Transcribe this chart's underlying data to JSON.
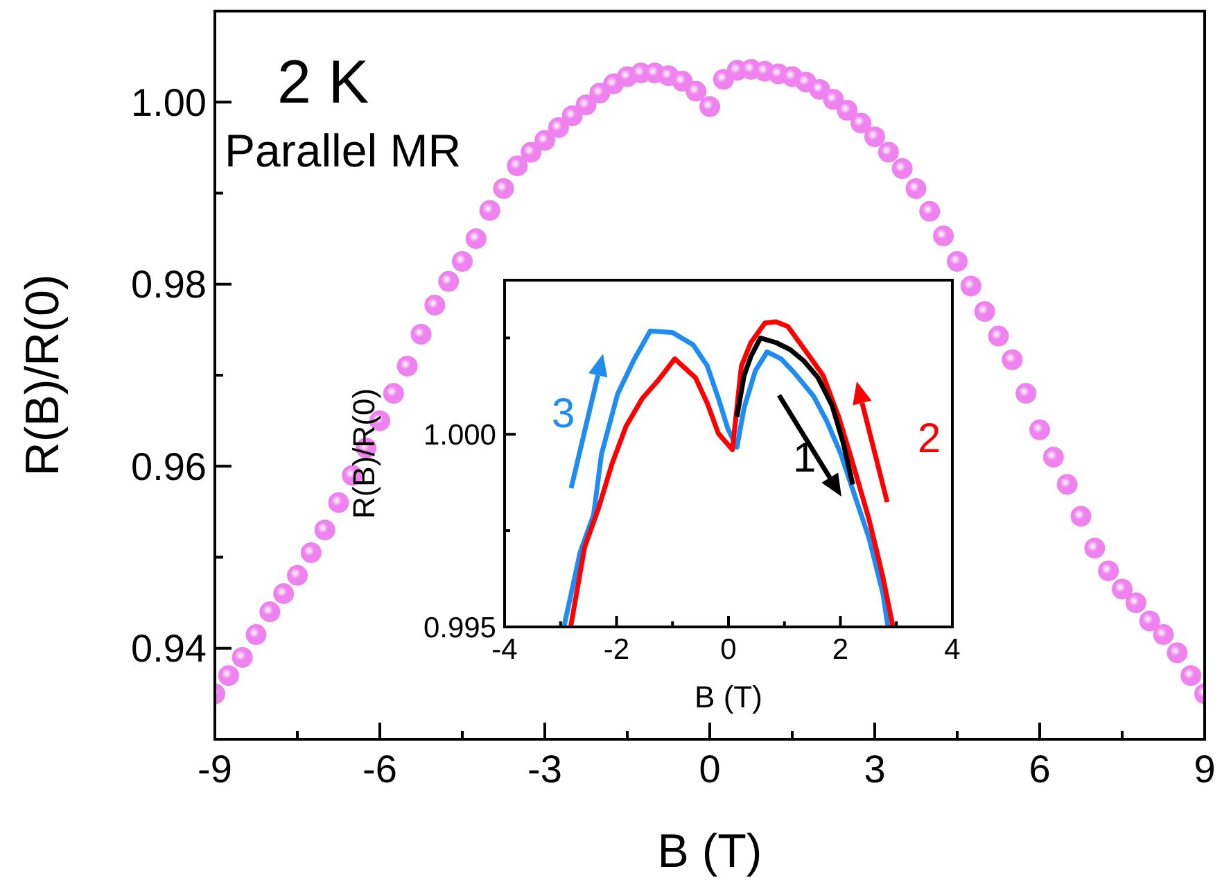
{
  "chart_data": [
    {
      "type": "scatter",
      "xlabel": "B (T)",
      "ylabel": "R(B)/R(0)",
      "annotations": [
        "2 K",
        "Parallel MR"
      ],
      "marker": "circle",
      "color": "#ee82ee",
      "x": [
        -9,
        -8.75,
        -8.5,
        -8.25,
        -8,
        -7.75,
        -7.5,
        -7.25,
        -7,
        -6.75,
        -6.5,
        -6.25,
        -6,
        -5.75,
        -5.5,
        -5.25,
        -5,
        -4.75,
        -4.5,
        -4.25,
        -4,
        -3.75,
        -3.5,
        -3.25,
        -3,
        -2.75,
        -2.5,
        -2.25,
        -2,
        -1.75,
        -1.5,
        -1.25,
        -1,
        -0.75,
        -0.5,
        -0.25,
        0,
        0.25,
        0.5,
        0.75,
        1,
        1.25,
        1.5,
        1.75,
        2,
        2.25,
        2.5,
        2.75,
        3,
        3.25,
        3.5,
        3.75,
        4,
        4.25,
        4.5,
        4.75,
        5,
        5.25,
        5.5,
        5.75,
        6,
        6.25,
        6.5,
        6.75,
        7,
        7.25,
        7.5,
        7.75,
        8,
        8.25,
        8.5,
        8.75,
        9
      ],
      "values": [
        0.935,
        0.937,
        0.939,
        0.9415,
        0.944,
        0.946,
        0.948,
        0.9505,
        0.953,
        0.956,
        0.959,
        0.962,
        0.965,
        0.968,
        0.971,
        0.9745,
        0.9777,
        0.9803,
        0.9825,
        0.985,
        0.9881,
        0.9905,
        0.993,
        0.9945,
        0.9958,
        0.9972,
        0.9985,
        0.9997,
        1.001,
        1.002,
        1.0028,
        1.0032,
        1.0032,
        1.0029,
        1.0023,
        1.0012,
        0.9995,
        1.0025,
        1.0035,
        1.0036,
        1.0034,
        1.0031,
        1.0028,
        1.0022,
        1.0014,
        1.0003,
        0.9991,
        0.9977,
        0.9962,
        0.9945,
        0.9927,
        0.9905,
        0.988,
        0.9853,
        0.9825,
        0.9798,
        0.977,
        0.9743,
        0.9717,
        0.968,
        0.964,
        0.961,
        0.958,
        0.9545,
        0.951,
        0.9485,
        0.9465,
        0.945,
        0.943,
        0.9415,
        0.9395,
        0.937,
        0.935
      ],
      "xlim": [
        -9,
        9
      ],
      "ylim": [
        0.93,
        1.01
      ],
      "xticks": [
        -9,
        {
          "value": -7.5,
          "label": null
        },
        -6,
        {
          "value": -4.5,
          "label": null
        },
        -3,
        {
          "value": -1.5,
          "label": null
        },
        0,
        {
          "value": 1.5,
          "label": null
        },
        3,
        {
          "value": 4.5,
          "label": null
        },
        6,
        {
          "value": 7.5,
          "label": null
        },
        9
      ],
      "yticks": [
        {
          "value": 0.93,
          "label": null
        },
        0.94,
        {
          "value": 0.95,
          "label": null
        },
        0.96,
        {
          "value": 0.97,
          "label": null
        },
        0.98,
        {
          "value": 0.99,
          "label": null
        },
        {
          "value": 1,
          "label": "1.00"
        },
        {
          "value": 1.01,
          "label": null
        }
      ]
    },
    {
      "type": "line",
      "xlabel": "B (T)",
      "ylabel": "R(B)/R(0)",
      "line_style": "solid",
      "xlim": [
        -4,
        4
      ],
      "ylim": [
        0.995,
        1.004
      ],
      "xticks": [
        -4,
        {
          "value": -3,
          "label": null
        },
        -2,
        {
          "value": -1,
          "label": null
        },
        0,
        {
          "value": 1,
          "label": null
        },
        2,
        {
          "value": 3,
          "label": null
        },
        4
      ],
      "yticks": [
        0.995,
        {
          "value": 0.9975,
          "label": null
        },
        {
          "value": 1,
          "label": "1.000"
        },
        {
          "value": 1.0025,
          "label": null
        }
      ],
      "series": [
        {
          "name": "3",
          "color": "#1e8cf0",
          "x": [
            -2.94,
            -2.65,
            -2.41,
            -2.27,
            -1.98,
            -1.7,
            -1.4,
            -1.0,
            -0.63,
            -0.38,
            -0.18,
            -0.01,
            0.15,
            0.28,
            0.48,
            0.69,
            0.94,
            1.18,
            1.52,
            1.76,
            2.01,
            2.26,
            2.51,
            2.76,
            2.85
          ],
          "values": [
            0.995,
            0.99694,
            0.99791,
            0.99948,
            1.00105,
            1.0019,
            1.00268,
            1.00264,
            1.00232,
            1.00178,
            1.00093,
            1.00014,
            0.99966,
            1.00069,
            1.00165,
            1.00214,
            1.00196,
            1.00159,
            1.00099,
            1.00033,
            0.99948,
            0.99839,
            0.99731,
            0.99586,
            0.995
          ]
        },
        {
          "name": "2",
          "color": "#ff0000",
          "x": [
            -2.82,
            -2.57,
            -2.32,
            -2.08,
            -1.83,
            -1.54,
            -1.25,
            -0.96,
            -0.59,
            -0.38,
            -0.18,
            0.07,
            0.23,
            0.4,
            0.65,
            0.85,
            1.06,
            1.39,
            1.69,
            1.97,
            2.22,
            2.51,
            2.75,
            2.94
          ],
          "values": [
            0.995,
            0.99707,
            0.99809,
            0.99924,
            1.00021,
            1.00093,
            1.00141,
            1.00196,
            1.00147,
            1.00081,
            1.00002,
            0.9996,
            1.00177,
            1.00238,
            1.00289,
            1.00292,
            1.0028,
            1.00214,
            1.00153,
            1.00045,
            0.99925,
            0.9978,
            0.99635,
            0.995
          ]
        },
        {
          "name": "1",
          "color": "#000000",
          "x": [
            0.15,
            0.28,
            0.4,
            0.57,
            0.85,
            1.1,
            1.35,
            1.6,
            1.85,
            2.05,
            2.22
          ],
          "values": [
            1.00045,
            1.00153,
            1.00202,
            1.0025,
            1.00238,
            1.0022,
            1.0019,
            1.00147,
            1.00075,
            0.99978,
            0.9987
          ]
        }
      ]
    }
  ]
}
